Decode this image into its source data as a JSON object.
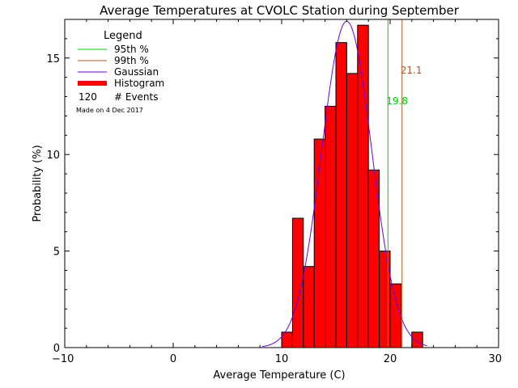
{
  "chart_data": {
    "type": "bar",
    "title": "Average Temperatures at CVOLC Station during September",
    "xlabel": "Average Temperature (C)",
    "ylabel": "Probability  (%)",
    "xlim": [
      -10,
      30
    ],
    "ylim": [
      0,
      17
    ],
    "x_ticks": [
      -10,
      0,
      10,
      20,
      30
    ],
    "y_ticks": [
      0,
      5,
      10,
      15
    ],
    "bin_width": 1,
    "histogram": [
      {
        "x0": 10,
        "value": 0.8
      },
      {
        "x0": 11,
        "value": 6.7
      },
      {
        "x0": 12,
        "value": 4.2
      },
      {
        "x0": 13,
        "value": 10.8
      },
      {
        "x0": 14,
        "value": 12.5
      },
      {
        "x0": 15,
        "value": 15.8
      },
      {
        "x0": 16,
        "value": 14.2
      },
      {
        "x0": 17,
        "value": 16.7
      },
      {
        "x0": 18,
        "value": 9.2
      },
      {
        "x0": 19,
        "value": 5.0
      },
      {
        "x0": 20,
        "value": 3.3
      },
      {
        "x0": 21,
        "value": 0.0
      },
      {
        "x0": 22,
        "value": 0.8
      }
    ],
    "gaussian": {
      "mean": 16.0,
      "sigma": 2.3,
      "peak": 16.9,
      "x_range": [
        8.2,
        23.4
      ]
    },
    "percentiles": [
      {
        "name": "95th %",
        "value": 19.8,
        "label": "19.8",
        "color": "#00d000"
      },
      {
        "name": "99th %",
        "value": 21.1,
        "label": "21.1",
        "color": "#b05820"
      }
    ],
    "legend": {
      "title": "Legend",
      "position": "top-left",
      "entries": [
        {
          "label": "95th %",
          "color": "#00d000",
          "style": "line"
        },
        {
          "label": "99th %",
          "color": "#b05820",
          "style": "line"
        },
        {
          "label": "Gaussian",
          "color": "#6a00e0",
          "style": "line"
        },
        {
          "label": "Histogram",
          "color": "#ff0000",
          "style": "thick-line"
        }
      ],
      "events_count": "120",
      "events_label": "# Events",
      "made_on": "Made on 4 Dec 2017"
    },
    "colors": {
      "histogram_fill": "#ff0000",
      "histogram_edge": "#000000",
      "gaussian": "#6a00e0",
      "p95": "#00d000",
      "p99": "#b05820",
      "made_on": "#b0b0b0"
    }
  }
}
